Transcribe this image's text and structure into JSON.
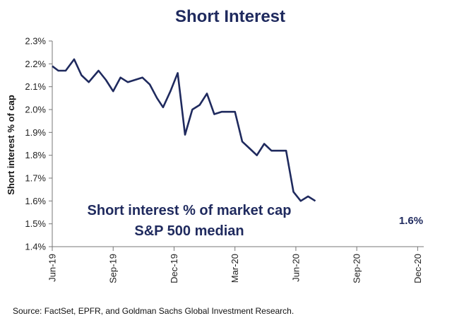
{
  "chart_data": {
    "type": "line",
    "title": "Short Interest",
    "ylabel": "Short interest % of cap",
    "xlabel": "",
    "ylim": [
      1.4,
      2.3
    ],
    "yticks": [
      "2.3%",
      "2.2%",
      "2.1%",
      "2.0%",
      "1.9%",
      "1.8%",
      "1.7%",
      "1.6%",
      "1.5%",
      "1.4%"
    ],
    "ytick_values": [
      2.3,
      2.2,
      2.1,
      2.0,
      1.9,
      1.8,
      1.7,
      1.6,
      1.5,
      1.4
    ],
    "xlim": [
      0,
      6.1
    ],
    "xticks": [
      "Jun-19",
      "Sep-19",
      "Dec-19",
      "Mar-20",
      "Jun-20",
      "Sep-20",
      "Dec-20"
    ],
    "xtick_values": [
      0,
      1,
      2,
      3,
      4,
      5,
      6
    ],
    "series": [
      {
        "name": "Short interest % of market cap S&P 500 median",
        "color": "#1f2a5e",
        "points": [
          [
            0.0,
            2.19
          ],
          [
            0.1,
            2.17
          ],
          [
            0.22,
            2.17
          ],
          [
            0.36,
            2.22
          ],
          [
            0.48,
            2.15
          ],
          [
            0.6,
            2.12
          ],
          [
            0.76,
            2.17
          ],
          [
            0.88,
            2.13
          ],
          [
            1.0,
            2.08
          ],
          [
            1.12,
            2.14
          ],
          [
            1.24,
            2.12
          ],
          [
            1.36,
            2.13
          ],
          [
            1.48,
            2.14
          ],
          [
            1.6,
            2.11
          ],
          [
            1.72,
            2.05
          ],
          [
            1.82,
            2.01
          ],
          [
            1.94,
            2.08
          ],
          [
            2.06,
            2.16
          ],
          [
            2.18,
            1.89
          ],
          [
            2.3,
            2.0
          ],
          [
            2.42,
            2.02
          ],
          [
            2.54,
            2.07
          ],
          [
            2.66,
            1.98
          ],
          [
            2.78,
            1.99
          ],
          [
            2.9,
            1.99
          ],
          [
            3.0,
            1.99
          ],
          [
            3.12,
            1.86
          ],
          [
            3.24,
            1.83
          ],
          [
            3.36,
            1.8
          ],
          [
            3.48,
            1.85
          ],
          [
            3.6,
            1.82
          ],
          [
            3.72,
            1.82
          ],
          [
            3.84,
            1.82
          ],
          [
            3.96,
            1.64
          ],
          [
            4.08,
            1.6
          ],
          [
            4.2,
            1.62
          ],
          [
            4.32,
            1.6
          ]
        ]
      }
    ],
    "annotations": [
      "Short interest % of market cap",
      "S&P 500 median"
    ],
    "last_value_label": "1.6%",
    "grid": false,
    "legend": "none",
    "source": "Source: FactSet, EPFR, and Goldman Sachs Global Investment Research."
  }
}
